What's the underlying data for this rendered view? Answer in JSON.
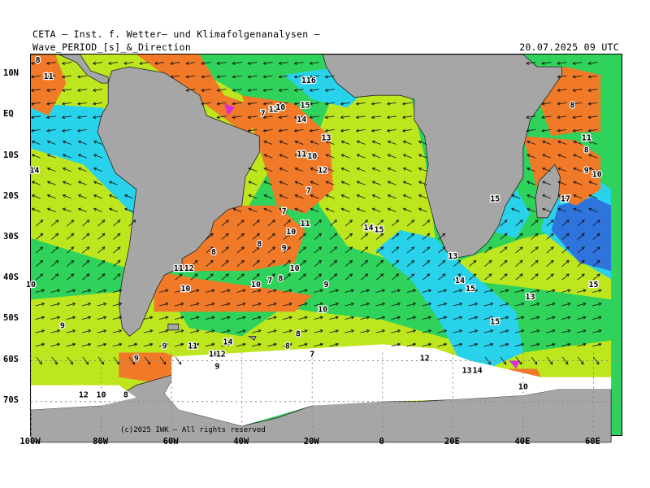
{
  "header": {
    "line1": "CETA — Inst. f. Wetter— und Klimafolgenanalysen —",
    "line2": "Wave_PERIOD_[s]_&_Direction",
    "timestamp": "20.07.2025 09 UTC"
  },
  "copyright": "(c)2025 IWK — All rights reserved",
  "axes": {
    "lat_labels": [
      {
        "label": "10N",
        "lat": 10
      },
      {
        "label": "EQ",
        "lat": 0
      },
      {
        "label": "10S",
        "lat": -10
      },
      {
        "label": "20S",
        "lat": -20
      },
      {
        "label": "30S",
        "lat": -30
      },
      {
        "label": "40S",
        "lat": -40
      },
      {
        "label": "50S",
        "lat": -50
      },
      {
        "label": "60S",
        "lat": -60
      },
      {
        "label": "70S",
        "lat": -70
      }
    ],
    "lon_labels": [
      {
        "label": "100W",
        "lon": -100
      },
      {
        "label": "80W",
        "lon": -80
      },
      {
        "label": "60W",
        "lon": -60
      },
      {
        "label": "40W",
        "lon": -40
      },
      {
        "label": "20W",
        "lon": -20
      },
      {
        "label": "0",
        "lon": 0
      },
      {
        "label": "20E",
        "lon": 20
      },
      {
        "label": "40E",
        "lon": 40
      },
      {
        "label": "60E",
        "lon": 60
      }
    ]
  },
  "colors": {
    "land": "#a6a6a6",
    "ice": "#ffffff",
    "orange": "#f07a28",
    "yellow_green": "#bde61e",
    "green": "#2fd25a",
    "cyan": "#28d2ea",
    "blue": "#2e74dc",
    "magenta": "#d62fd6"
  },
  "period_labels": [
    {
      "v": "8",
      "lon": -98,
      "lat": 13
    },
    {
      "v": "11",
      "lon": -95,
      "lat": 9
    },
    {
      "v": "116",
      "lon": -21,
      "lat": 8
    },
    {
      "v": "12",
      "lon": -31,
      "lat": 1
    },
    {
      "v": "10",
      "lon": -29,
      "lat": 1.5
    },
    {
      "v": "15",
      "lon": -22,
      "lat": 2
    },
    {
      "v": "7",
      "lon": -34,
      "lat": 0
    },
    {
      "v": "14",
      "lon": -23,
      "lat": -1.5
    },
    {
      "v": "13",
      "lon": -16,
      "lat": -6
    },
    {
      "v": "11",
      "lon": -23,
      "lat": -10
    },
    {
      "v": "10",
      "lon": -20,
      "lat": -10.5
    },
    {
      "v": "12",
      "lon": -17,
      "lat": -14
    },
    {
      "v": "7",
      "lon": -21,
      "lat": -19
    },
    {
      "v": "7",
      "lon": -28,
      "lat": -24
    },
    {
      "v": "11",
      "lon": -22,
      "lat": -27
    },
    {
      "v": "10",
      "lon": -26,
      "lat": -29
    },
    {
      "v": "14",
      "lon": -4,
      "lat": -28
    },
    {
      "v": "15",
      "lon": -1,
      "lat": -28.5
    },
    {
      "v": "8",
      "lon": -35,
      "lat": -32
    },
    {
      "v": "9",
      "lon": -28,
      "lat": -33
    },
    {
      "v": "8",
      "lon": -48,
      "lat": -34
    },
    {
      "v": "11",
      "lon": -58,
      "lat": -38
    },
    {
      "v": "12",
      "lon": -55,
      "lat": -38
    },
    {
      "v": "10",
      "lon": -25,
      "lat": -38
    },
    {
      "v": "7",
      "lon": -32,
      "lat": -41
    },
    {
      "v": "8",
      "lon": -29,
      "lat": -40.5
    },
    {
      "v": "10",
      "lon": -36,
      "lat": -42
    },
    {
      "v": "9",
      "lon": -16,
      "lat": -42
    },
    {
      "v": "10",
      "lon": -100,
      "lat": -42
    },
    {
      "v": "10",
      "lon": -56,
      "lat": -43
    },
    {
      "v": "10",
      "lon": -17,
      "lat": -48
    },
    {
      "v": "9",
      "lon": -91,
      "lat": -52
    },
    {
      "v": "8",
      "lon": -24,
      "lat": -54
    },
    {
      "v": "14",
      "lon": -44,
      "lat": -56
    },
    {
      "v": "11",
      "lon": -54,
      "lat": -57
    },
    {
      "v": "9",
      "lon": -62,
      "lat": -57
    },
    {
      "v": "8",
      "lon": -27,
      "lat": -57
    },
    {
      "v": "10",
      "lon": -48,
      "lat": -59
    },
    {
      "v": "12",
      "lon": -46,
      "lat": -59
    },
    {
      "v": "7",
      "lon": -20,
      "lat": -59
    },
    {
      "v": "9",
      "lon": -70,
      "lat": -60
    },
    {
      "v": "9",
      "lon": -47,
      "lat": -62
    },
    {
      "v": "12",
      "lon": 12,
      "lat": -60
    },
    {
      "v": "13",
      "lon": 24,
      "lat": -63
    },
    {
      "v": "14",
      "lon": 27,
      "lat": -63
    },
    {
      "v": "13",
      "lon": 20,
      "lat": -35
    },
    {
      "v": "14",
      "lon": 22,
      "lat": -41
    },
    {
      "v": "15",
      "lon": 25,
      "lat": -43
    },
    {
      "v": "15",
      "lon": 32,
      "lat": -21
    },
    {
      "v": "17",
      "lon": 52,
      "lat": -21
    },
    {
      "v": "13",
      "lon": 42,
      "lat": -45
    },
    {
      "v": "15",
      "lon": 60,
      "lat": -42
    },
    {
      "v": "15",
      "lon": 32,
      "lat": -51
    },
    {
      "v": "10",
      "lon": 40,
      "lat": -67
    },
    {
      "v": "8",
      "lon": 54,
      "lat": 2
    },
    {
      "v": "11",
      "lon": 58,
      "lat": -6
    },
    {
      "v": "8",
      "lon": 58,
      "lat": -9
    },
    {
      "v": "9",
      "lon": 58,
      "lat": -14
    },
    {
      "v": "10",
      "lon": 61,
      "lat": -15
    },
    {
      "v": "14",
      "lon": -99,
      "lat": -14
    },
    {
      "v": "12",
      "lon": -85,
      "lat": -69
    },
    {
      "v": "10",
      "lon": -80,
      "lat": -69
    },
    {
      "v": "8",
      "lon": -73,
      "lat": -69
    }
  ]
}
